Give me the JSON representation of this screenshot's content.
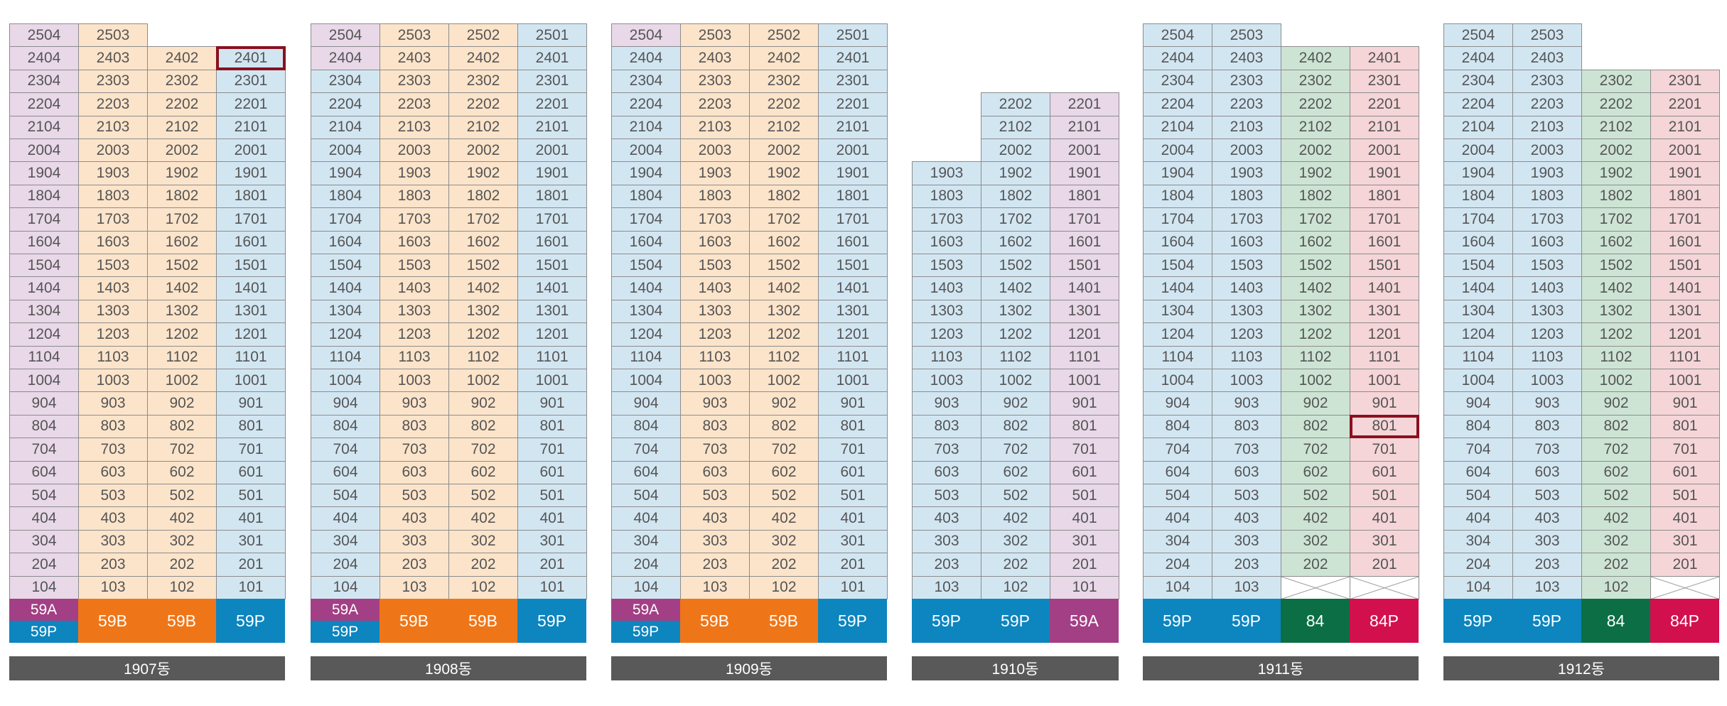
{
  "colors": {
    "lav": "#e8d8e8",
    "peach": "#fce4ca",
    "blue": "#d2e6f2",
    "green": "#cde4d4",
    "pink": "#f5d5d8",
    "type_59A": "#a33f85",
    "type_59P": "#0d85bf",
    "type_59B": "#ef7618",
    "type_84": "#0b6e45",
    "type_84P": "#d3104e",
    "selected": "#8a1020"
  },
  "buildings": [
    {
      "label": "1907동",
      "columns": [
        {
          "top_floor": 25,
          "suffix": "04",
          "color": "lav",
          "type": [
            {
              "text": "59A",
              "color": "type_59A"
            },
            {
              "text": "59P",
              "color": "type_59P"
            }
          ]
        },
        {
          "top_floor": 25,
          "suffix": "03",
          "color": "peach",
          "type": [
            {
              "text": "59B",
              "color": "type_59B"
            }
          ]
        },
        {
          "top_floor": 24,
          "suffix": "02",
          "color": "peach",
          "type": [
            {
              "text": "59B",
              "color": "type_59B"
            }
          ]
        },
        {
          "top_floor": 24,
          "suffix": "01",
          "color": "blue",
          "type": [
            {
              "text": "59P",
              "color": "type_59P"
            }
          ]
        }
      ],
      "color_overrides": {
        "2503": "peach",
        "2403": "peach",
        "2303": "peach",
        "2402": "peach",
        "2302": "peach",
        "2401": "blue",
        "2301": "blue"
      },
      "selected": [
        "2401"
      ],
      "crossed": []
    },
    {
      "label": "1908동",
      "columns": [
        {
          "top_floor": 25,
          "suffix": "04",
          "color": "blue",
          "type": [
            {
              "text": "59A",
              "color": "type_59A"
            },
            {
              "text": "59P",
              "color": "type_59P"
            }
          ]
        },
        {
          "top_floor": 25,
          "suffix": "03",
          "color": "peach",
          "type": [
            {
              "text": "59B",
              "color": "type_59B"
            }
          ]
        },
        {
          "top_floor": 25,
          "suffix": "02",
          "color": "peach",
          "type": [
            {
              "text": "59B",
              "color": "type_59B"
            }
          ]
        },
        {
          "top_floor": 25,
          "suffix": "01",
          "color": "blue",
          "type": [
            {
              "text": "59P",
              "color": "type_59P"
            }
          ]
        }
      ],
      "color_overrides": {
        "2504": "lav",
        "2404": "lav"
      },
      "selected": [],
      "crossed": []
    },
    {
      "label": "1909동",
      "columns": [
        {
          "top_floor": 25,
          "suffix": "04",
          "color": "blue",
          "type": [
            {
              "text": "59A",
              "color": "type_59A"
            },
            {
              "text": "59P",
              "color": "type_59P"
            }
          ]
        },
        {
          "top_floor": 25,
          "suffix": "03",
          "color": "peach",
          "type": [
            {
              "text": "59B",
              "color": "type_59B"
            }
          ]
        },
        {
          "top_floor": 25,
          "suffix": "02",
          "color": "peach",
          "type": [
            {
              "text": "59B",
              "color": "type_59B"
            }
          ]
        },
        {
          "top_floor": 25,
          "suffix": "01",
          "color": "blue",
          "type": [
            {
              "text": "59P",
              "color": "type_59P"
            }
          ]
        }
      ],
      "color_overrides": {
        "2504": "lav"
      },
      "selected": [],
      "crossed": []
    },
    {
      "label": "1910동",
      "columns": [
        {
          "top_floor": 19,
          "suffix": "03",
          "color": "blue",
          "type": [
            {
              "text": "59P",
              "color": "type_59P"
            }
          ]
        },
        {
          "top_floor": 22,
          "suffix": "02",
          "color": "blue",
          "type": [
            {
              "text": "59P",
              "color": "type_59P"
            }
          ]
        },
        {
          "top_floor": 22,
          "suffix": "01",
          "color": "lav",
          "type": [
            {
              "text": "59A",
              "color": "type_59A"
            }
          ]
        }
      ],
      "color_overrides": {},
      "selected": [],
      "crossed": []
    },
    {
      "label": "1911동",
      "columns": [
        {
          "top_floor": 25,
          "suffix": "04",
          "color": "blue",
          "type": [
            {
              "text": "59P",
              "color": "type_59P"
            }
          ]
        },
        {
          "top_floor": 25,
          "suffix": "03",
          "color": "blue",
          "type": [
            {
              "text": "59P",
              "color": "type_59P"
            }
          ]
        },
        {
          "top_floor": 24,
          "suffix": "02",
          "color": "green",
          "type": [
            {
              "text": "84",
              "color": "type_84"
            }
          ]
        },
        {
          "top_floor": 24,
          "suffix": "01",
          "color": "pink",
          "type": [
            {
              "text": "84P",
              "color": "type_84P"
            }
          ]
        }
      ],
      "color_overrides": {},
      "selected": [
        "801"
      ],
      "crossed": [
        "102",
        "101"
      ]
    },
    {
      "label": "1912동",
      "columns": [
        {
          "top_floor": 25,
          "suffix": "04",
          "color": "blue",
          "type": [
            {
              "text": "59P",
              "color": "type_59P"
            }
          ]
        },
        {
          "top_floor": 25,
          "suffix": "03",
          "color": "blue",
          "type": [
            {
              "text": "59P",
              "color": "type_59P"
            }
          ]
        },
        {
          "top_floor": 23,
          "suffix": "02",
          "color": "green",
          "type": [
            {
              "text": "84",
              "color": "type_84"
            }
          ]
        },
        {
          "top_floor": 23,
          "suffix": "01",
          "color": "pink",
          "type": [
            {
              "text": "84P",
              "color": "type_84P"
            }
          ]
        }
      ],
      "color_overrides": {},
      "selected": [],
      "crossed": [
        "101"
      ]
    }
  ]
}
